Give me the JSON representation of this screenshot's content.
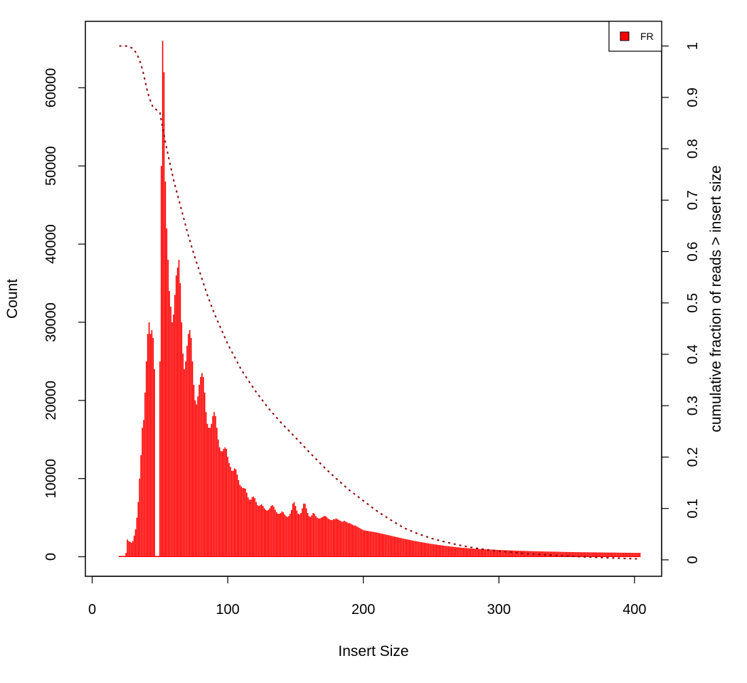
{
  "chart_data": {
    "type": "bar",
    "title": "",
    "xlabel": "Insert Size",
    "ylabel": "Count",
    "y2label": "cumulative fraction of reads > insert size",
    "xlim": [
      -5,
      420
    ],
    "ylim": [
      -2500,
      68500
    ],
    "y2lim": [
      -0.032,
      1.048
    ],
    "xticks": [
      0,
      100,
      200,
      300,
      400
    ],
    "xtick_labels": [
      "0",
      "100",
      "200",
      "300",
      "400"
    ],
    "yticks": [
      0,
      10000,
      20000,
      30000,
      40000,
      50000,
      60000
    ],
    "ytick_labels": [
      "0",
      "10000",
      "20000",
      "30000",
      "40000",
      "50000",
      "60000"
    ],
    "y2ticks": [
      0,
      0.1,
      0.2,
      0.3,
      0.4,
      0.5,
      0.6,
      0.7,
      0.8,
      0.9,
      1
    ],
    "y2tick_labels": [
      "0",
      "0.1",
      "0.2",
      "0.3",
      "0.4",
      "0.5",
      "0.6",
      "0.7",
      "0.8",
      "0.9",
      "1"
    ],
    "grid": false,
    "legend": {
      "position": "top-right",
      "entries": [
        {
          "label": "FR",
          "color": "#ff0000"
        }
      ]
    },
    "bar_color": "#ff0000",
    "cumulative_color": "#8b0000",
    "series": [
      {
        "name": "FR",
        "kind": "histogram",
        "points": [
          [
            20,
            0
          ],
          [
            22,
            0
          ],
          [
            24,
            0
          ],
          [
            25,
            500
          ],
          [
            26,
            2200
          ],
          [
            27,
            2000
          ],
          [
            28,
            1900
          ],
          [
            29,
            1800
          ],
          [
            30,
            2000
          ],
          [
            31,
            2700
          ],
          [
            32,
            3500
          ],
          [
            33,
            5000
          ],
          [
            34,
            7000
          ],
          [
            35,
            10000
          ],
          [
            36,
            13000
          ],
          [
            37,
            16500
          ],
          [
            38,
            17500
          ],
          [
            39,
            21000
          ],
          [
            40,
            25000
          ],
          [
            41,
            28500
          ],
          [
            42,
            30000
          ],
          [
            43,
            28500
          ],
          [
            44,
            29000
          ],
          [
            45,
            28000
          ],
          [
            46,
            24000
          ],
          [
            47,
            0
          ],
          [
            48,
            0
          ],
          [
            49,
            0
          ],
          [
            50,
            25000
          ],
          [
            51,
            50000
          ],
          [
            52,
            66000
          ],
          [
            53,
            62000
          ],
          [
            54,
            48000
          ],
          [
            55,
            42000
          ],
          [
            56,
            38000
          ],
          [
            57,
            34000
          ],
          [
            58,
            32000
          ],
          [
            59,
            30000
          ],
          [
            60,
            31000
          ],
          [
            61,
            33500
          ],
          [
            62,
            36000
          ],
          [
            63,
            37000
          ],
          [
            64,
            38000
          ],
          [
            65,
            35000
          ],
          [
            66,
            30000
          ],
          [
            67,
            26000
          ],
          [
            68,
            24000
          ],
          [
            69,
            25000
          ],
          [
            70,
            27000
          ],
          [
            71,
            28500
          ],
          [
            72,
            29000
          ],
          [
            73,
            28000
          ],
          [
            74,
            25000
          ],
          [
            75,
            22000
          ],
          [
            76,
            20000
          ],
          [
            77,
            19500
          ],
          [
            78,
            20500
          ],
          [
            79,
            22000
          ],
          [
            80,
            23000
          ],
          [
            81,
            23500
          ],
          [
            82,
            23000
          ],
          [
            83,
            21000
          ],
          [
            84,
            18500
          ],
          [
            85,
            17000
          ],
          [
            86,
            16500
          ],
          [
            87,
            16500
          ],
          [
            88,
            17000
          ],
          [
            89,
            18000
          ],
          [
            90,
            18500
          ],
          [
            91,
            18000
          ],
          [
            92,
            16500
          ],
          [
            93,
            15000
          ],
          [
            94,
            14000
          ],
          [
            95,
            13500
          ],
          [
            96,
            13500
          ],
          [
            97,
            13800
          ],
          [
            98,
            14000
          ],
          [
            99,
            13800
          ],
          [
            100,
            12800
          ],
          [
            101,
            12000
          ],
          [
            102,
            11500
          ],
          [
            103,
            11000
          ],
          [
            104,
            11000
          ],
          [
            105,
            11300
          ],
          [
            106,
            11200
          ],
          [
            107,
            10500
          ],
          [
            108,
            9800
          ],
          [
            109,
            9200
          ],
          [
            110,
            9000
          ],
          [
            111,
            8800
          ],
          [
            112,
            8800
          ],
          [
            113,
            8700
          ],
          [
            114,
            8200
          ],
          [
            115,
            7600
          ],
          [
            116,
            7300
          ],
          [
            117,
            7300
          ],
          [
            118,
            7600
          ],
          [
            119,
            7700
          ],
          [
            120,
            7500
          ],
          [
            121,
            7000
          ],
          [
            122,
            6600
          ],
          [
            123,
            6500
          ],
          [
            124,
            6600
          ],
          [
            125,
            6700
          ],
          [
            126,
            6500
          ],
          [
            127,
            6200
          ],
          [
            128,
            6000
          ],
          [
            129,
            5900
          ],
          [
            130,
            6000
          ],
          [
            131,
            6200
          ],
          [
            132,
            6500
          ],
          [
            133,
            6600
          ],
          [
            134,
            6400
          ],
          [
            135,
            6000
          ],
          [
            136,
            5700
          ],
          [
            137,
            5500
          ],
          [
            138,
            5500
          ],
          [
            139,
            5600
          ],
          [
            140,
            5800
          ],
          [
            141,
            5700
          ],
          [
            142,
            5400
          ],
          [
            143,
            5200
          ],
          [
            144,
            5100
          ],
          [
            145,
            5200
          ],
          [
            146,
            5500
          ],
          [
            147,
            6000
          ],
          [
            148,
            6800
          ],
          [
            149,
            7000
          ],
          [
            150,
            6500
          ],
          [
            151,
            5900
          ],
          [
            152,
            5500
          ],
          [
            153,
            5400
          ],
          [
            154,
            5600
          ],
          [
            155,
            6200
          ],
          [
            156,
            6800
          ],
          [
            157,
            6800
          ],
          [
            158,
            6200
          ],
          [
            159,
            5600
          ],
          [
            160,
            5200
          ],
          [
            161,
            5100
          ],
          [
            162,
            5300
          ],
          [
            163,
            5600
          ],
          [
            164,
            5500
          ],
          [
            165,
            5200
          ],
          [
            166,
            5000
          ],
          [
            167,
            4900
          ],
          [
            168,
            4900
          ],
          [
            169,
            5000
          ],
          [
            170,
            5100
          ],
          [
            171,
            5200
          ],
          [
            172,
            5200
          ],
          [
            173,
            5100
          ],
          [
            174,
            4900
          ],
          [
            175,
            4800
          ],
          [
            176,
            4700
          ],
          [
            177,
            4700
          ],
          [
            178,
            4800
          ],
          [
            179,
            4800
          ],
          [
            180,
            4900
          ],
          [
            181,
            4800
          ],
          [
            182,
            4700
          ],
          [
            183,
            4600
          ],
          [
            184,
            4500
          ],
          [
            185,
            4500
          ],
          [
            186,
            4600
          ],
          [
            187,
            4500
          ],
          [
            188,
            4400
          ],
          [
            189,
            4300
          ],
          [
            190,
            4300
          ],
          [
            191,
            4200
          ],
          [
            192,
            4100
          ],
          [
            193,
            4000
          ],
          [
            194,
            4000
          ],
          [
            195,
            3900
          ],
          [
            196,
            3800
          ],
          [
            197,
            3700
          ],
          [
            198,
            3600
          ],
          [
            199,
            3500
          ],
          [
            200,
            3400
          ],
          [
            210,
            3100
          ],
          [
            220,
            2700
          ],
          [
            230,
            2300
          ],
          [
            240,
            1950
          ],
          [
            250,
            1650
          ],
          [
            260,
            1400
          ],
          [
            270,
            1200
          ],
          [
            280,
            1050
          ],
          [
            290,
            950
          ],
          [
            300,
            870
          ],
          [
            310,
            800
          ],
          [
            320,
            740
          ],
          [
            330,
            690
          ],
          [
            340,
            650
          ],
          [
            350,
            610
          ],
          [
            360,
            580
          ],
          [
            370,
            560
          ],
          [
            380,
            540
          ],
          [
            390,
            520
          ],
          [
            400,
            500
          ],
          [
            404,
            500
          ]
        ]
      },
      {
        "name": "",
        "kind": "cumulative",
        "axis": "right",
        "dashed": true,
        "points": [
          [
            20,
            1.0
          ],
          [
            25,
            1.0
          ],
          [
            28,
            0.998
          ],
          [
            30,
            0.995
          ],
          [
            33,
            0.985
          ],
          [
            36,
            0.965
          ],
          [
            38,
            0.945
          ],
          [
            40,
            0.92
          ],
          [
            42,
            0.9
          ],
          [
            45,
            0.88
          ],
          [
            48,
            0.875
          ],
          [
            50,
            0.87
          ],
          [
            52,
            0.84
          ],
          [
            55,
            0.8
          ],
          [
            60,
            0.74
          ],
          [
            65,
            0.69
          ],
          [
            70,
            0.64
          ],
          [
            75,
            0.595
          ],
          [
            80,
            0.555
          ],
          [
            85,
            0.515
          ],
          [
            90,
            0.48
          ],
          [
            95,
            0.45
          ],
          [
            100,
            0.42
          ],
          [
            110,
            0.37
          ],
          [
            120,
            0.33
          ],
          [
            130,
            0.295
          ],
          [
            140,
            0.265
          ],
          [
            150,
            0.238
          ],
          [
            160,
            0.21
          ],
          [
            170,
            0.183
          ],
          [
            180,
            0.158
          ],
          [
            190,
            0.135
          ],
          [
            200,
            0.115
          ],
          [
            210,
            0.095
          ],
          [
            220,
            0.078
          ],
          [
            230,
            0.062
          ],
          [
            240,
            0.051
          ],
          [
            250,
            0.042
          ],
          [
            260,
            0.035
          ],
          [
            270,
            0.029
          ],
          [
            280,
            0.024
          ],
          [
            290,
            0.02
          ],
          [
            300,
            0.017
          ],
          [
            320,
            0.012
          ],
          [
            340,
            0.009
          ],
          [
            360,
            0.006
          ],
          [
            380,
            0.004
          ],
          [
            400,
            0.002
          ],
          [
            404,
            0.002
          ]
        ]
      }
    ]
  }
}
